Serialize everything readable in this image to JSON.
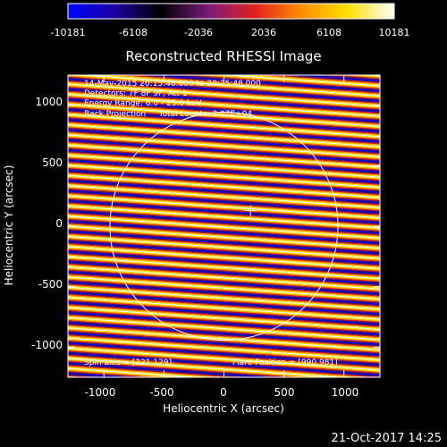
{
  "colorbar": {
    "ticks": [
      "-10181",
      "-6108",
      "-2036",
      "2036",
      "6108",
      "10181"
    ],
    "min": -10181,
    "max": 10181,
    "colormap": [
      "#0000ff",
      "#1a00a0",
      "#000000",
      "#7a1a7a",
      "#e02020",
      "#ff8c00",
      "#ffe000",
      "#ffffff"
    ]
  },
  "chart_data": {
    "type": "heatmap",
    "title": "Reconstructed RHESSI Image",
    "xlabel": "Heliocentric X (arcsec)",
    "ylabel": "Heliocentric Y (arcsec)",
    "xlim": [
      -1300,
      1300
    ],
    "ylim": [
      -1250,
      1250
    ],
    "xticks": [
      "-1000",
      "-500",
      "0",
      "500",
      "1000"
    ],
    "yticks": [
      "1000",
      "500",
      "0",
      "-500",
      "-1000"
    ],
    "xtick_values": [
      -1000,
      -500,
      0,
      500,
      1000
    ],
    "ytick_values": [
      1000,
      500,
      0,
      -500,
      -1000
    ],
    "solar_limb_radius_arcsec": 950,
    "spin_axis": [
      221,
      129
    ],
    "flare_position": [
      990,
      981
    ],
    "fringe_spacing_arcsec": 84,
    "fringe_slope": -0.07,
    "fringe_angle_deg": 86,
    "info_lines": [
      "14-May-2015 20:15:48.600 to 20:25:48.000",
      "Detectors: 7F 8F 9F, Att 1",
      "Energy Range: 6.0 - 25.0 keV",
      "Back Projection     Total counts: 3.07E+04"
    ],
    "spin_axis_label": "Spin axis = [221,129]",
    "flare_position_label": "Flare Position = [990,981]"
  },
  "footer": {
    "timestamp": "21-Oct-2017 14:25"
  }
}
